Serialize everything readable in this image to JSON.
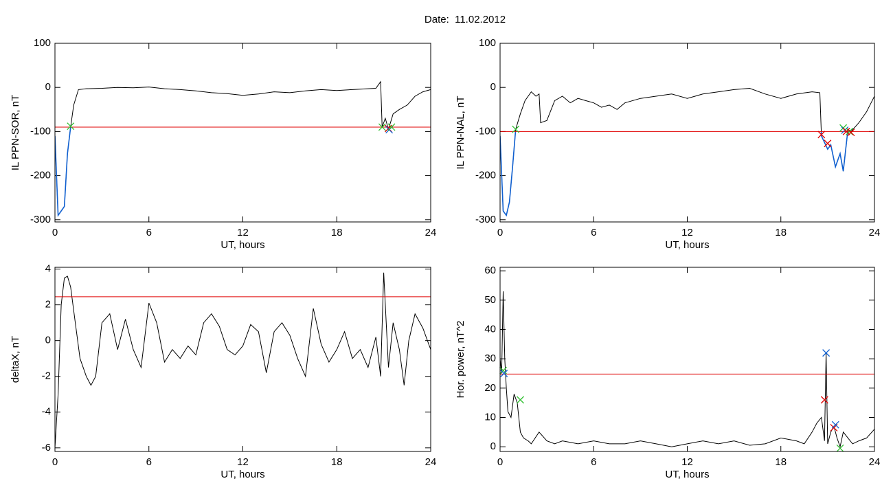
{
  "title": "Date:  11.02.2012",
  "chart_data": [
    {
      "type": "line",
      "xlabel": "UT, hours",
      "ylabel": "IL PPN-SOR, nT",
      "xlim": [
        0,
        24
      ],
      "xticks": [
        0,
        6,
        12,
        18,
        24
      ],
      "ylim": [
        -305,
        100
      ],
      "yticks": [
        100,
        0,
        -100,
        -200,
        -300
      ],
      "x": [
        0,
        0.2,
        0.4,
        0.6,
        0.8,
        1.0,
        1.2,
        1.5,
        2,
        3,
        4,
        5,
        6,
        7,
        8,
        9,
        10,
        11,
        12,
        13,
        14,
        15,
        16,
        17,
        18,
        19,
        20,
        20.5,
        20.8,
        20.9,
        21.1,
        21.3,
        21.6,
        22,
        22.5,
        23,
        23.5,
        24
      ],
      "series": [
        {
          "color": "#000000",
          "below_color": "#1060d0",
          "values": [
            -110,
            -290,
            -280,
            -270,
            -150,
            -90,
            -40,
            -5,
            -3,
            -2,
            0,
            -1,
            1,
            -3,
            -5,
            -8,
            -12,
            -14,
            -18,
            -15,
            -10,
            -12,
            -8,
            -5,
            -7,
            -5,
            -3,
            -2,
            13,
            -90,
            -70,
            -95,
            -60,
            -50,
            -40,
            -20,
            -10,
            -5
          ]
        }
      ],
      "threshold": {
        "value": -90,
        "color": "#e00000"
      },
      "markers": [
        {
          "x": 1.0,
          "y": -88,
          "color": "#30c030"
        },
        {
          "x": 20.9,
          "y": -90,
          "color": "#30c030"
        },
        {
          "x": 21.3,
          "y": -93,
          "color": "#e00000"
        },
        {
          "x": 21.35,
          "y": -96,
          "color": "#1060d0"
        },
        {
          "x": 21.5,
          "y": -90,
          "color": "#30c030"
        }
      ]
    },
    {
      "type": "line",
      "xlabel": "UT, hours",
      "ylabel": "IL PPN-NAL, nT",
      "xlim": [
        0,
        24
      ],
      "xticks": [
        0,
        6,
        12,
        18,
        24
      ],
      "ylim": [
        -305,
        100
      ],
      "yticks": [
        100,
        0,
        -100,
        -200,
        -300
      ],
      "x": [
        0,
        0.2,
        0.4,
        0.6,
        0.8,
        1.0,
        1.3,
        1.6,
        2.0,
        2.3,
        2.5,
        2.6,
        3.0,
        3.5,
        4,
        4.5,
        5,
        5.5,
        6,
        6.5,
        7,
        7.5,
        8,
        9,
        10,
        11,
        12,
        13,
        14,
        15,
        16,
        17,
        18,
        19,
        20,
        20.5,
        20.6,
        21,
        21.2,
        21.5,
        21.8,
        22,
        22.3,
        22.5,
        23,
        23.5,
        24
      ],
      "series": [
        {
          "color": "#000000",
          "below_color": "#1060d0",
          "values": [
            -110,
            -280,
            -290,
            -260,
            -180,
            -95,
            -60,
            -30,
            -10,
            -20,
            -15,
            -80,
            -75,
            -30,
            -20,
            -35,
            -25,
            -30,
            -35,
            -45,
            -40,
            -50,
            -35,
            -25,
            -20,
            -15,
            -25,
            -15,
            -10,
            -5,
            -2,
            -15,
            -25,
            -15,
            -10,
            -12,
            -110,
            -140,
            -130,
            -180,
            -150,
            -190,
            -95,
            -100,
            -80,
            -55,
            -20
          ]
        }
      ],
      "threshold": {
        "value": -100,
        "color": "#e00000"
      },
      "markers": [
        {
          "x": 1.0,
          "y": -95,
          "color": "#30c030"
        },
        {
          "x": 20.6,
          "y": -107,
          "color": "#e00000"
        },
        {
          "x": 21.0,
          "y": -127,
          "color": "#e00000"
        },
        {
          "x": 22.0,
          "y": -92,
          "color": "#30c030"
        },
        {
          "x": 22.1,
          "y": -97,
          "color": "#1060d0"
        },
        {
          "x": 22.2,
          "y": -100,
          "color": "#e00000"
        },
        {
          "x": 22.4,
          "y": -100,
          "color": "#30c030"
        },
        {
          "x": 22.5,
          "y": -102,
          "color": "#e00000"
        }
      ]
    },
    {
      "type": "line",
      "xlabel": "UT, hours",
      "ylabel": "deltaX, nT",
      "xlim": [
        0,
        24
      ],
      "xticks": [
        0,
        6,
        12,
        18,
        24
      ],
      "ylim": [
        -6.2,
        4.1
      ],
      "yticks": [
        4,
        2,
        0,
        -2,
        -4,
        -6
      ],
      "x": [
        0,
        0.2,
        0.4,
        0.6,
        0.8,
        1.0,
        1.3,
        1.6,
        2.0,
        2.3,
        2.6,
        3.0,
        3.5,
        4.0,
        4.5,
        5.0,
        5.5,
        6.0,
        6.5,
        7.0,
        7.5,
        8,
        8.5,
        9,
        9.5,
        10,
        10.5,
        11,
        11.5,
        12,
        12.5,
        13,
        13.5,
        14,
        14.5,
        15,
        15.5,
        16,
        16.5,
        17,
        17.5,
        18,
        18.5,
        19,
        19.5,
        20,
        20.5,
        20.8,
        21.0,
        21.3,
        21.6,
        22,
        22.3,
        22.6,
        23,
        23.5,
        24
      ],
      "series": [
        {
          "color": "#000000",
          "values": [
            -6,
            -3,
            2,
            3.5,
            3.6,
            3.0,
            1.0,
            -1.0,
            -2.0,
            -2.5,
            -2.0,
            1.0,
            1.5,
            -0.5,
            1.2,
            -0.5,
            -1.5,
            2.1,
            1.0,
            -1.2,
            -0.5,
            -1.0,
            -0.3,
            -0.8,
            1.0,
            1.5,
            0.8,
            -0.5,
            -0.8,
            -0.3,
            0.9,
            0.5,
            -1.8,
            0.5,
            1.0,
            0.3,
            -1.0,
            -2.0,
            1.8,
            -0.2,
            -1.2,
            -0.5,
            0.5,
            -1.0,
            -0.5,
            -1.5,
            0.2,
            -2.0,
            3.8,
            -1.5,
            1.0,
            -0.5,
            -2.5,
            0.0,
            1.5,
            0.7,
            -0.5
          ]
        }
      ],
      "threshold": {
        "value": 2.45,
        "color": "#e00000"
      },
      "markers": []
    },
    {
      "type": "line",
      "xlabel": "UT, hours",
      "ylabel": "Hor. power, nT^2",
      "xlim": [
        0,
        24
      ],
      "xticks": [
        0,
        6,
        12,
        18,
        24
      ],
      "ylim": [
        -1.6,
        61.2
      ],
      "yticks": [
        60,
        50,
        40,
        30,
        20,
        10,
        0
      ],
      "x": [
        0,
        0.1,
        0.2,
        0.3,
        0.4,
        0.5,
        0.7,
        0.9,
        1.1,
        1.3,
        1.5,
        1.8,
        2,
        2.5,
        3,
        3.5,
        4,
        5,
        6,
        7,
        8,
        9,
        10,
        11,
        12,
        13,
        14,
        15,
        16,
        17,
        18,
        19,
        19.5,
        20,
        20.3,
        20.6,
        20.8,
        20.9,
        21.0,
        21.2,
        21.4,
        21.6,
        21.8,
        22,
        22.3,
        22.6,
        23,
        23.5,
        24
      ],
      "series": [
        {
          "color": "#000000",
          "values": [
            30,
            25,
            53,
            30,
            20,
            12,
            10,
            18,
            15,
            5,
            3,
            2,
            1,
            5,
            2,
            1,
            2,
            1,
            2,
            1,
            1,
            2,
            1,
            0,
            1,
            2,
            1,
            2,
            0.5,
            1,
            3,
            2,
            1,
            5,
            8,
            10,
            2,
            32,
            1,
            5,
            7,
            3,
            0,
            5,
            3,
            1,
            2,
            3,
            6
          ]
        }
      ],
      "threshold": {
        "value": 24.8,
        "color": "#e00000"
      },
      "markers": [
        {
          "x": 0.2,
          "y": 26,
          "color": "#30c030"
        },
        {
          "x": 0.25,
          "y": 25,
          "color": "#1060d0"
        },
        {
          "x": 1.3,
          "y": 16,
          "color": "#30c030"
        },
        {
          "x": 20.8,
          "y": 16,
          "color": "#e00000"
        },
        {
          "x": 20.9,
          "y": 32,
          "color": "#1060d0"
        },
        {
          "x": 21.4,
          "y": 6.5,
          "color": "#e00000"
        },
        {
          "x": 21.5,
          "y": 7.5,
          "color": "#1060d0"
        },
        {
          "x": 21.8,
          "y": -0.5,
          "color": "#30c030"
        }
      ]
    }
  ]
}
